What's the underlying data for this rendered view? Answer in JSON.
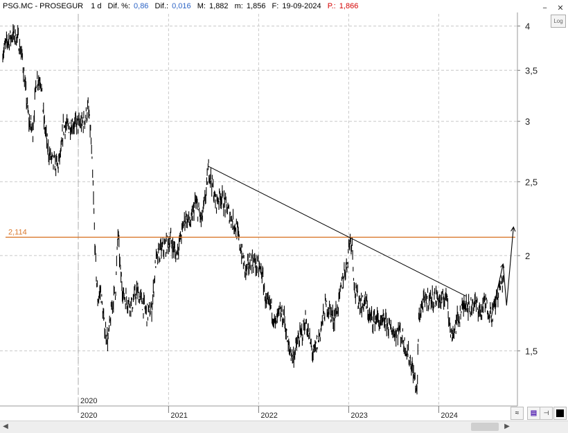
{
  "header": {
    "symbol": "PSG.MC - PROSEGUR",
    "interval": "1 d",
    "dif_pct_label": "Dif. %:",
    "dif_pct_value": "0,86",
    "dif_label": "Dif.:",
    "dif_value": "0,016",
    "max_label": "M:",
    "max_value": "1,882",
    "min_label": "m:",
    "min_value": "1,856",
    "date_label": "F:",
    "date_value": "19-09-2024",
    "price_label": "P.:",
    "price_value": "1,866"
  },
  "controls": {
    "log_label": "Log",
    "scroll_left_icon": "scroll-left-icon",
    "scroll_right_icon": "scroll-right-icon",
    "fit_icon": "fit-icon",
    "save_icon": "save-icon",
    "color_icon": "color-swatch-icon"
  },
  "colors": {
    "price": "#000000",
    "level": "#d9772b",
    "grid": "#c8c8c8",
    "blue_text": "#2b63c5",
    "red_text": "#d40000"
  },
  "chart_data": {
    "type": "line",
    "style": "ohlc-bars",
    "log_scale": true,
    "grid": true,
    "ylim": [
      1.27,
      4.15
    ],
    "y_ticks": [
      {
        "value": 4,
        "label": "4"
      },
      {
        "value": 3.5,
        "label": "3,5"
      },
      {
        "value": 3,
        "label": "3"
      },
      {
        "value": 2.5,
        "label": "2,5"
      },
      {
        "value": 2,
        "label": "2"
      },
      {
        "value": 1.5,
        "label": "1,5"
      }
    ],
    "x_range": [
      "2019-03-01",
      "2024-11-15"
    ],
    "x_ticks": [
      {
        "date": "2020-01-01",
        "label": "2020"
      },
      {
        "date": "2021-01-01",
        "label": "2021"
      },
      {
        "date": "2022-01-01",
        "label": "2022"
      },
      {
        "date": "2023-01-01",
        "label": "2023"
      },
      {
        "date": "2024-01-01",
        "label": "2024"
      }
    ],
    "period_marker": {
      "date": "2020-01-01",
      "label": "2020"
    },
    "level_line": {
      "value": 2.114,
      "label": "2,114"
    },
    "trendline": {
      "start": [
        "2021-06-10",
        2.62
      ],
      "end": [
        "2024-04-20",
        1.77
      ]
    },
    "projection": [
      [
        "2024-08-01",
        1.66
      ],
      [
        "2024-09-18",
        1.95
      ],
      [
        "2024-10-02",
        1.72
      ],
      [
        "2024-10-30",
        2.18
      ]
    ],
    "series": [
      {
        "points": [
          [
            "2019-03-01",
            3.7
          ],
          [
            "2019-03-20",
            3.82
          ],
          [
            "2019-04-10",
            3.9
          ],
          [
            "2019-05-01",
            3.86
          ],
          [
            "2019-05-20",
            3.62
          ],
          [
            "2019-06-01",
            3.3
          ],
          [
            "2019-06-15",
            3.0
          ],
          [
            "2019-07-01",
            2.92
          ],
          [
            "2019-07-15",
            3.4
          ],
          [
            "2019-08-01",
            3.42
          ],
          [
            "2019-08-15",
            3.0
          ],
          [
            "2019-09-01",
            2.75
          ],
          [
            "2019-09-20",
            2.65
          ],
          [
            "2019-10-10",
            2.62
          ],
          [
            "2019-10-25",
            2.75
          ],
          [
            "2019-11-01",
            2.95
          ],
          [
            "2019-11-20",
            2.95
          ],
          [
            "2019-12-10",
            2.98
          ],
          [
            "2020-01-10",
            2.97
          ],
          [
            "2020-01-25",
            3.0
          ],
          [
            "2020-02-10",
            3.12
          ],
          [
            "2020-02-20",
            2.9
          ],
          [
            "2020-03-01",
            2.45
          ],
          [
            "2020-03-10",
            2.0
          ],
          [
            "2020-03-20",
            1.75
          ],
          [
            "2020-04-01",
            1.8
          ],
          [
            "2020-04-15",
            1.62
          ],
          [
            "2020-05-01",
            1.55
          ],
          [
            "2020-05-15",
            1.7
          ],
          [
            "2020-06-01",
            1.82
          ],
          [
            "2020-06-10",
            2.15
          ],
          [
            "2020-06-20",
            1.9
          ],
          [
            "2020-07-01",
            1.78
          ],
          [
            "2020-07-20",
            1.74
          ],
          [
            "2020-08-05",
            1.72
          ],
          [
            "2020-08-25",
            1.8
          ],
          [
            "2020-09-15",
            1.74
          ],
          [
            "2020-10-05",
            1.68
          ],
          [
            "2020-10-25",
            1.7
          ],
          [
            "2020-11-10",
            1.96
          ],
          [
            "2020-11-25",
            2.02
          ],
          [
            "2020-12-15",
            2.05
          ],
          [
            "2021-01-10",
            2.1
          ],
          [
            "2021-02-01",
            2.0
          ],
          [
            "2021-02-20",
            2.12
          ],
          [
            "2021-03-10",
            2.25
          ],
          [
            "2021-04-01",
            2.2
          ],
          [
            "2021-04-20",
            2.35
          ],
          [
            "2021-05-15",
            2.22
          ],
          [
            "2021-06-01",
            2.4
          ],
          [
            "2021-06-12",
            2.6
          ],
          [
            "2021-06-25",
            2.5
          ],
          [
            "2021-07-10",
            2.35
          ],
          [
            "2021-08-01",
            2.4
          ],
          [
            "2021-08-20",
            2.32
          ],
          [
            "2021-09-10",
            2.25
          ],
          [
            "2021-10-01",
            2.18
          ],
          [
            "2021-10-20",
            2.05
          ],
          [
            "2021-11-10",
            1.9
          ],
          [
            "2021-12-01",
            1.98
          ],
          [
            "2021-12-20",
            1.95
          ],
          [
            "2022-01-15",
            1.9
          ],
          [
            "2022-02-01",
            1.72
          ],
          [
            "2022-02-20",
            1.72
          ],
          [
            "2022-03-10",
            1.62
          ],
          [
            "2022-03-25",
            1.68
          ],
          [
            "2022-04-15",
            1.66
          ],
          [
            "2022-05-01",
            1.52
          ],
          [
            "2022-05-20",
            1.47
          ],
          [
            "2022-06-10",
            1.55
          ],
          [
            "2022-06-25",
            1.58
          ],
          [
            "2022-07-10",
            1.65
          ],
          [
            "2022-07-25",
            1.56
          ],
          [
            "2022-08-10",
            1.48
          ],
          [
            "2022-08-25",
            1.53
          ],
          [
            "2022-09-10",
            1.6
          ],
          [
            "2022-09-30",
            1.72
          ],
          [
            "2022-10-15",
            1.7
          ],
          [
            "2022-11-01",
            1.65
          ],
          [
            "2022-11-20",
            1.72
          ],
          [
            "2022-12-10",
            1.88
          ],
          [
            "2022-12-25",
            1.95
          ],
          [
            "2023-01-05",
            2.1
          ],
          [
            "2023-01-15",
            2.08
          ],
          [
            "2023-01-25",
            1.8
          ],
          [
            "2023-02-10",
            1.75
          ],
          [
            "2023-02-25",
            1.72
          ],
          [
            "2023-03-10",
            1.75
          ],
          [
            "2023-03-25",
            1.66
          ],
          [
            "2023-04-10",
            1.65
          ],
          [
            "2023-04-25",
            1.66
          ],
          [
            "2023-05-10",
            1.62
          ],
          [
            "2023-05-25",
            1.64
          ],
          [
            "2023-06-10",
            1.62
          ],
          [
            "2023-06-25",
            1.6
          ],
          [
            "2023-07-10",
            1.58
          ],
          [
            "2023-07-25",
            1.6
          ],
          [
            "2023-08-10",
            1.55
          ],
          [
            "2023-08-25",
            1.5
          ],
          [
            "2023-09-10",
            1.45
          ],
          [
            "2023-09-25",
            1.38
          ],
          [
            "2023-10-05",
            1.32
          ],
          [
            "2023-10-12",
            1.65
          ],
          [
            "2023-10-25",
            1.72
          ],
          [
            "2023-11-10",
            1.75
          ],
          [
            "2023-11-25",
            1.76
          ],
          [
            "2023-12-10",
            1.75
          ],
          [
            "2023-12-25",
            1.76
          ],
          [
            "2024-01-10",
            1.74
          ],
          [
            "2024-01-25",
            1.76
          ],
          [
            "2024-02-05",
            1.78
          ],
          [
            "2024-02-12",
            1.65
          ],
          [
            "2024-02-20",
            1.57
          ],
          [
            "2024-03-05",
            1.6
          ],
          [
            "2024-03-20",
            1.66
          ],
          [
            "2024-04-05",
            1.7
          ],
          [
            "2024-04-20",
            1.75
          ],
          [
            "2024-05-05",
            1.7
          ],
          [
            "2024-05-20",
            1.74
          ],
          [
            "2024-06-05",
            1.72
          ],
          [
            "2024-06-20",
            1.68
          ],
          [
            "2024-07-05",
            1.74
          ],
          [
            "2024-07-20",
            1.7
          ],
          [
            "2024-08-05",
            1.68
          ],
          [
            "2024-08-20",
            1.74
          ],
          [
            "2024-09-05",
            1.82
          ],
          [
            "2024-09-19",
            1.866
          ]
        ]
      }
    ]
  }
}
